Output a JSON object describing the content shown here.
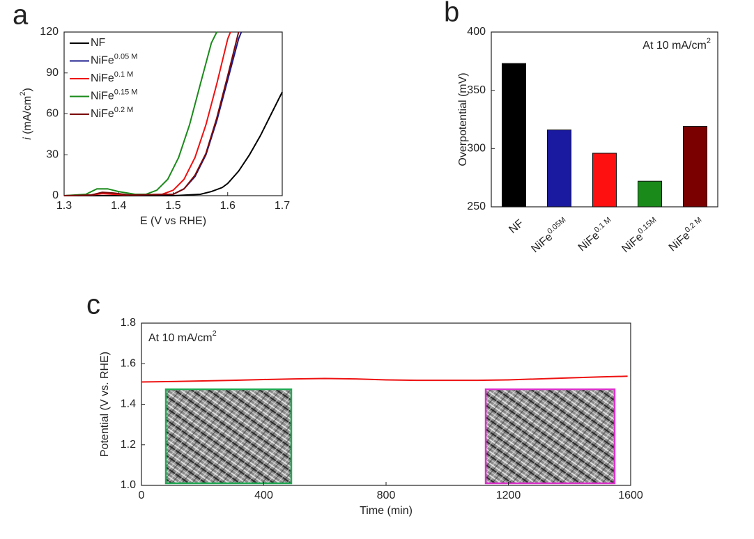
{
  "chart_data": [
    {
      "type": "line",
      "panel": "a",
      "x_label": "E (V vs RHE)",
      "y_label": "i",
      "y_label_unit": " (mA/cm",
      "y_label_sup": "2",
      "y_label_end": ")",
      "xlim": [
        1.3,
        1.7
      ],
      "xticks": [
        1.3,
        1.4,
        1.5,
        1.6,
        1.7
      ],
      "ylim": [
        0,
        120
      ],
      "yticks": [
        0,
        30,
        60,
        90,
        120
      ],
      "series": [
        {
          "name": "NF",
          "name_sup": null,
          "color": "#000000",
          "x": [
            1.3,
            1.4,
            1.5,
            1.55,
            1.57,
            1.59,
            1.6,
            1.62,
            1.64,
            1.66,
            1.68,
            1.7
          ],
          "values": [
            0,
            0,
            0,
            1,
            3,
            6,
            9,
            18,
            30,
            44,
            60,
            76
          ]
        },
        {
          "name": "NiFe",
          "name_sup": "0.05 M",
          "color": "#1a1a8c",
          "x": [
            1.3,
            1.35,
            1.37,
            1.39,
            1.42,
            1.5,
            1.52,
            1.54,
            1.56,
            1.58,
            1.6,
            1.62,
            1.625
          ],
          "values": [
            0,
            0.5,
            2,
            1.5,
            0.5,
            1,
            5,
            14,
            30,
            55,
            85,
            115,
            120
          ]
        },
        {
          "name": "NiFe",
          "name_sup": "0.1 M",
          "color": "#ee1111",
          "x": [
            1.3,
            1.35,
            1.37,
            1.39,
            1.42,
            1.48,
            1.5,
            1.52,
            1.54,
            1.56,
            1.58,
            1.6,
            1.605
          ],
          "values": [
            0,
            0.5,
            1.5,
            1,
            0.5,
            1,
            4,
            12,
            28,
            52,
            82,
            115,
            120
          ]
        },
        {
          "name": "NiFe",
          "name_sup": "0.15 M",
          "color": "#1a8a1a",
          "x": [
            1.3,
            1.34,
            1.36,
            1.38,
            1.4,
            1.43,
            1.45,
            1.47,
            1.49,
            1.51,
            1.53,
            1.55,
            1.57,
            1.58
          ],
          "values": [
            0,
            1,
            5,
            5,
            3,
            1,
            1,
            4,
            12,
            28,
            52,
            82,
            112,
            120
          ]
        },
        {
          "name": "NiFe",
          "name_sup": "0.2 M",
          "color": "#7a0a0a",
          "x": [
            1.3,
            1.35,
            1.37,
            1.39,
            1.42,
            1.5,
            1.52,
            1.54,
            1.56,
            1.58,
            1.6,
            1.62
          ],
          "values": [
            0,
            0.5,
            2.5,
            2,
            0.5,
            1,
            5,
            15,
            31,
            57,
            88,
            120
          ]
        }
      ]
    },
    {
      "type": "bar",
      "panel": "b",
      "annotation": "At 10 mA/cm",
      "annotation_sup": "2",
      "y_label": "Overpotential (mV)",
      "categories": [
        "NF",
        "NiFe",
        "NiFe",
        "NiFe",
        "NiFe"
      ],
      "category_sups": [
        null,
        "0.05M",
        "0.1 M",
        "0.15M",
        "0.2 M"
      ],
      "values": [
        373,
        316,
        296,
        272,
        319
      ],
      "colors": [
        "#000000",
        "#1a1aa0",
        "#ff1010",
        "#1a8a1a",
        "#7a0000"
      ],
      "ylim": [
        250,
        400
      ],
      "yticks": [
        250,
        300,
        350,
        400
      ]
    },
    {
      "type": "line",
      "panel": "c",
      "annotation": "At 10 mA/cm",
      "annotation_sup": "2",
      "x_label": "Time (min)",
      "y_label": "Potential (V vs. RHE)",
      "xlim": [
        0,
        1600
      ],
      "xticks": [
        0,
        400,
        800,
        1200,
        1600
      ],
      "ylim": [
        1.0,
        1.8
      ],
      "yticks": [
        {
          "value": 1.0,
          "label": "1.0"
        },
        1.2,
        1.4,
        1.6,
        1.8
      ],
      "series": [
        {
          "name": null,
          "name_sup": null,
          "color": "#ee1111",
          "x": [
            0,
            100,
            200,
            300,
            400,
            500,
            600,
            700,
            800,
            900,
            1000,
            1100,
            1200,
            1300,
            1400,
            1500,
            1590
          ],
          "values": [
            1.51,
            1.512,
            1.515,
            1.518,
            1.522,
            1.525,
            1.527,
            1.525,
            1.52,
            1.518,
            1.518,
            1.518,
            1.52,
            1.525,
            1.53,
            1.535,
            1.538
          ]
        }
      ]
    }
  ]
}
